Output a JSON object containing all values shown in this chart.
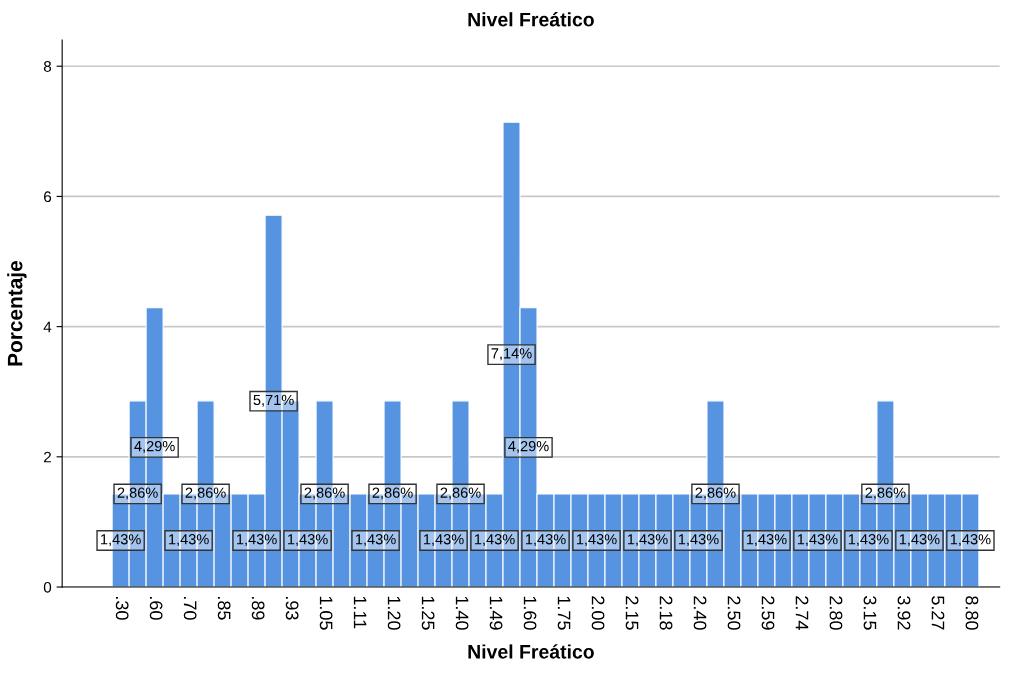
{
  "chart_data": {
    "type": "bar",
    "title": "Nivel Freático",
    "xlabel": "Nivel Freático",
    "ylabel": "Porcentaje",
    "categories": [
      ".30",
      null,
      ".60",
      null,
      ".70",
      null,
      ".85",
      null,
      ".89",
      null,
      ".93",
      null,
      "1.05",
      null,
      "1.11",
      null,
      "1.20",
      null,
      "1.25",
      null,
      "1.40",
      null,
      "1.49",
      null,
      "1.60",
      null,
      "1.75",
      null,
      "2.00",
      null,
      "2.15",
      null,
      "2.18",
      null,
      "2.40",
      null,
      "2.50",
      null,
      "2.59",
      null,
      "2.74",
      null,
      "2.80",
      null,
      "3.15",
      null,
      "3.92",
      null,
      "5.27",
      null,
      "8.80"
    ],
    "values": [
      1.43,
      2.86,
      4.29,
      1.43,
      1.43,
      2.86,
      1.43,
      1.43,
      1.43,
      5.71,
      2.86,
      1.43,
      2.86,
      1.43,
      1.43,
      1.43,
      2.86,
      1.43,
      1.43,
      1.43,
      2.86,
      1.43,
      1.43,
      7.14,
      4.29,
      1.43,
      1.43,
      1.43,
      1.43,
      1.43,
      1.43,
      1.43,
      1.43,
      1.43,
      1.43,
      2.86,
      1.43,
      1.43,
      1.43,
      1.43,
      1.43,
      1.43,
      1.43,
      1.43,
      1.43,
      2.86,
      1.43,
      1.43,
      1.43,
      1.43,
      1.43
    ],
    "value_labels": [
      "1,43%",
      "2,86%",
      "4,29%",
      null,
      "1,43%",
      "2,86%",
      null,
      null,
      "1,43%",
      "5,71%",
      null,
      "1,43%",
      "2,86%",
      null,
      null,
      "1,43%",
      "2,86%",
      null,
      null,
      "1,43%",
      "2,86%",
      null,
      "1,43%",
      "7,14%",
      "4,29%",
      "1,43%",
      null,
      null,
      "1,43%",
      null,
      null,
      "1,43%",
      null,
      null,
      "1,43%",
      "2,86%",
      null,
      null,
      "1,43%",
      null,
      null,
      "1,43%",
      null,
      null,
      "1,43%",
      "2,86%",
      null,
      "1,43%",
      null,
      null,
      "1,43%"
    ],
    "color": "#5694e2",
    "ylim": [
      0,
      8.4
    ],
    "yticks": [
      0,
      2,
      4,
      6,
      8
    ],
    "grid": "y"
  }
}
